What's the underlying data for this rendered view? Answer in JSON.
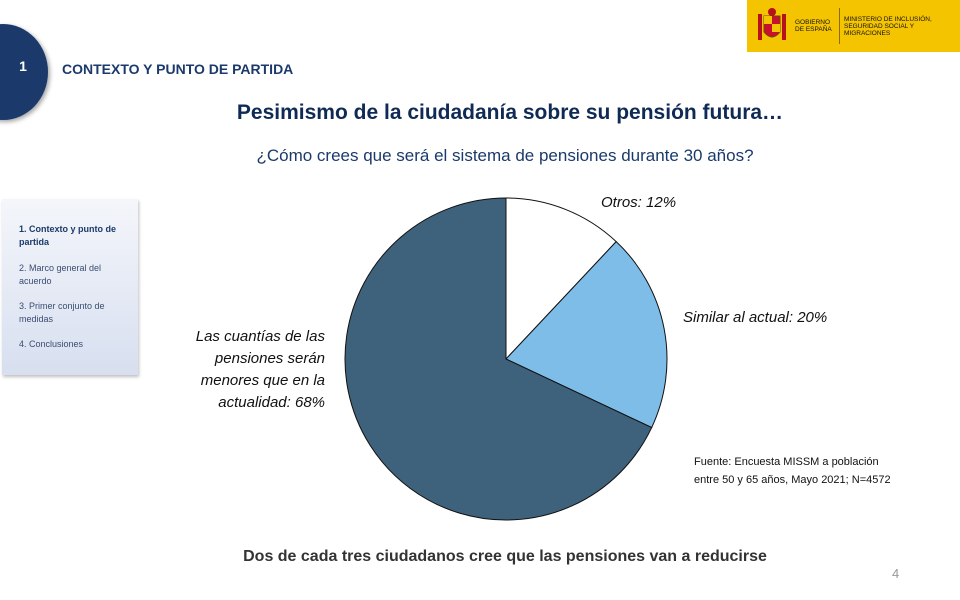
{
  "section": {
    "number": "1",
    "title": "CONTEXTO Y PUNTO DE PARTIDA"
  },
  "logo": {
    "gov_text": "GOBIERNO DE ESPAÑA",
    "ministry_text": "MINISTERIO DE INCLUSIÓN, SEGURIDAD SOCIAL Y MIGRACIONES",
    "color": "#f5c400"
  },
  "title": "Pesimismo de la ciudadanía sobre su pensión futura…",
  "question": "¿Cómo crees que será el sistema de pensiones durante 30 años?",
  "sidebar": {
    "items": [
      {
        "label": "1. Contexto y punto de partida",
        "active": true
      },
      {
        "label": "2. Marco general del acuerdo",
        "active": false
      },
      {
        "label": "3. Primer conjunto de medidas",
        "active": false
      },
      {
        "label": "4. Conclusiones",
        "active": false
      }
    ]
  },
  "chart_data": {
    "type": "pie",
    "slices": [
      {
        "name": "Otros",
        "value": 12,
        "label": "Otros: 12%",
        "color": "#ffffff"
      },
      {
        "name": "Similar al actual",
        "value": 20,
        "label": "Similar al actual: 20%",
        "color": "#7fbde9"
      },
      {
        "name": "Las cuantías de las pensiones serán menores que en la actualidad",
        "value": 68,
        "label": "Las cuantías de las pensiones serán menores que en la actualidad: 68%",
        "color": "#3e627c"
      }
    ]
  },
  "labels": {
    "otros": "Otros: 12%",
    "similar": "Similar al actual: 20%",
    "menores_lines": [
      "Las cuantías de las",
      "pensiones serán",
      "menores que en la",
      "actualidad: 68%"
    ]
  },
  "source": {
    "line1": "Fuente:  Encuesta MISSM a población",
    "line2": "entre 50 y 65 años, Mayo 2021; N=4572"
  },
  "bottom_note": "Dos de cada tres ciudadanos  cree que las pensiones van a reducirse",
  "page_number": "4"
}
